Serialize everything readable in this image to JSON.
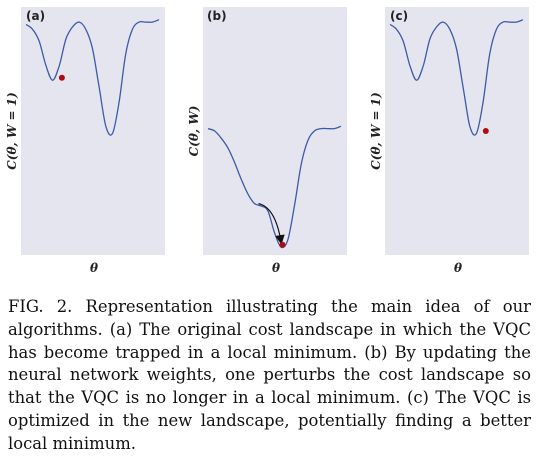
{
  "figure": {
    "caption_label": "FIG. 2.",
    "caption_text": "Representation illustrating the main idea of our algorithms. (a) The original cost landscape in which the VQC has become trapped in a local minimum. (b) By updating the neural network weights, one perturbs the cost landscape so that the VQC is no longer in a local minimum. (c) The VQC is optimized in the new landscape, potentially finding a better local minimum."
  },
  "colors": {
    "curve": "#3b5ba8",
    "marker": "#b00a12",
    "panel_background": "#e5e5ef",
    "arrow": "#111111"
  },
  "chart_data": [
    {
      "type": "line",
      "panel_label": "(a)",
      "xlabel": "θ",
      "ylabel": "C(θ, W = 1)",
      "xlim": [
        0,
        1
      ],
      "ylim": [
        0,
        1
      ],
      "grid": false,
      "series": [
        {
          "x": [
            0.0,
            0.05,
            0.1,
            0.15,
            0.2,
            0.25,
            0.3,
            0.35,
            0.4,
            0.45,
            0.5,
            0.55,
            0.6,
            0.65,
            0.7,
            0.75,
            0.8,
            0.85,
            0.9,
            0.95,
            1.0
          ],
          "values": [
            0.94,
            0.92,
            0.87,
            0.77,
            0.71,
            0.77,
            0.88,
            0.93,
            0.95,
            0.92,
            0.84,
            0.68,
            0.52,
            0.49,
            0.62,
            0.82,
            0.92,
            0.95,
            0.95,
            0.95,
            0.96
          ]
        }
      ],
      "markers": [
        {
          "x": 0.27,
          "y": 0.72,
          "label": "current parameter"
        }
      ]
    },
    {
      "type": "line",
      "panel_label": "(b)",
      "xlabel": "θ",
      "ylabel": "C(θ, W)",
      "xlim": [
        0,
        1
      ],
      "ylim": [
        0,
        1
      ],
      "grid": false,
      "series": [
        {
          "x": [
            0.0,
            0.05,
            0.1,
            0.15,
            0.2,
            0.25,
            0.3,
            0.35,
            0.4,
            0.45,
            0.5,
            0.55,
            0.6,
            0.65,
            0.7,
            0.75,
            0.8,
            0.85,
            0.9,
            0.95,
            1.0
          ],
          "values": [
            0.51,
            0.5,
            0.47,
            0.43,
            0.37,
            0.3,
            0.24,
            0.2,
            0.19,
            0.17,
            0.08,
            0.02,
            0.05,
            0.19,
            0.36,
            0.46,
            0.5,
            0.51,
            0.51,
            0.51,
            0.52
          ]
        }
      ],
      "markers": [
        {
          "x": 0.56,
          "y": 0.03,
          "label": "parameter after perturbation"
        }
      ],
      "arrow": {
        "from": [
          0.38,
          0.2
        ],
        "to": [
          0.55,
          0.04
        ]
      }
    },
    {
      "type": "line",
      "panel_label": "(c)",
      "xlabel": "θ",
      "ylabel": "C(θ, W = 1)",
      "xlim": [
        0,
        1
      ],
      "ylim": [
        0,
        1
      ],
      "grid": false,
      "series": [
        {
          "x": [
            0.0,
            0.05,
            0.1,
            0.15,
            0.2,
            0.25,
            0.3,
            0.35,
            0.4,
            0.45,
            0.5,
            0.55,
            0.6,
            0.65,
            0.7,
            0.75,
            0.8,
            0.85,
            0.9,
            0.95,
            1.0
          ],
          "values": [
            0.94,
            0.92,
            0.87,
            0.77,
            0.71,
            0.77,
            0.88,
            0.93,
            0.95,
            0.92,
            0.84,
            0.68,
            0.52,
            0.49,
            0.62,
            0.82,
            0.92,
            0.95,
            0.95,
            0.95,
            0.96
          ]
        }
      ],
      "markers": [
        {
          "x": 0.72,
          "y": 0.5,
          "label": "new local minimum"
        }
      ]
    }
  ]
}
